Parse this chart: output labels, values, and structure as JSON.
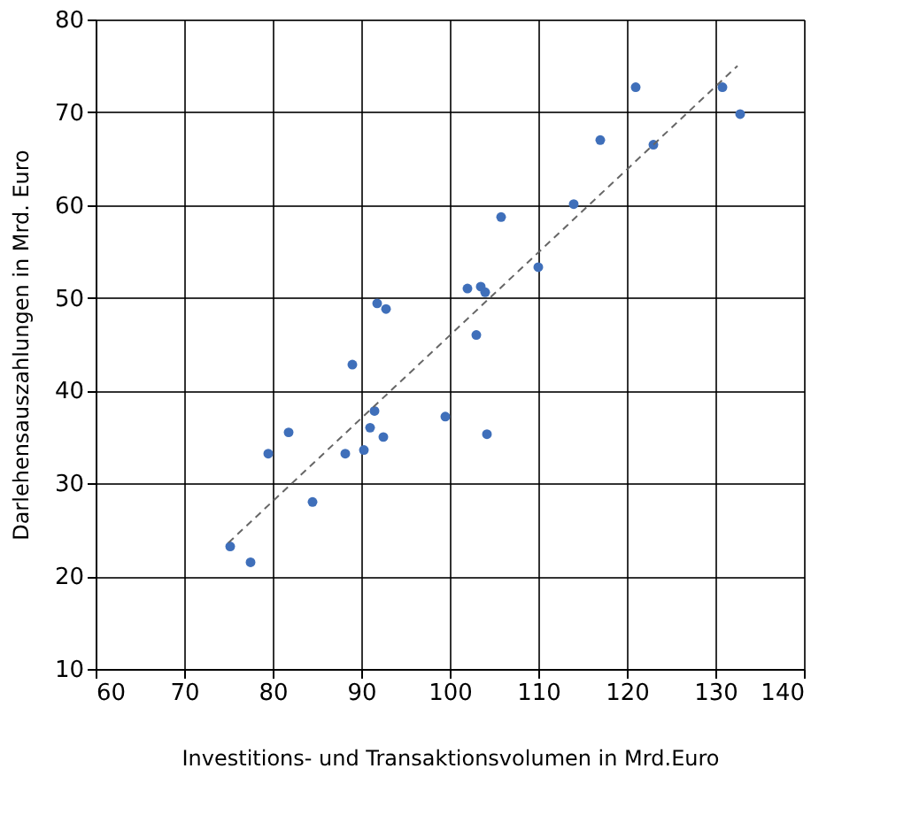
{
  "chart_data": {
    "type": "scatter",
    "xlabel": "Investitions- und Transaktionsvolumen in Mrd.Euro",
    "ylabel": "Darlehensauszahlungen in Mrd. Euro",
    "xlim": [
      60,
      140
    ],
    "xticks": [
      60,
      70,
      80,
      90,
      100,
      110,
      120,
      130,
      140
    ],
    "ylim": [
      10,
      80
    ],
    "yticks": [
      10,
      20,
      30,
      40,
      50,
      60,
      70,
      80
    ],
    "grid": true,
    "series": [
      {
        "color": "#3f6fba",
        "marker": "circle",
        "x": [
          75.2,
          77.5,
          79.5,
          81.8,
          84.5,
          88.2,
          89,
          90.3,
          91,
          91.5,
          91.8,
          92.5,
          92.8,
          99.5,
          102,
          103,
          103.5,
          104,
          104.2,
          105.8,
          110,
          114,
          117,
          121,
          123,
          130.8,
          132.8
        ],
        "values": [
          23.2,
          21.5,
          33.2,
          35.5,
          28,
          33.2,
          42.8,
          33.6,
          36,
          37.8,
          49.4,
          35,
          48.8,
          37.2,
          51,
          46,
          51.2,
          50.6,
          35.3,
          58.7,
          53.3,
          60.1,
          67,
          72.7,
          66.5,
          72.7,
          69.8
        ]
      },
      {
        "type": "line",
        "color": "#666666",
        "line_style": "dashed",
        "marker": "none",
        "x": [
          75,
          132.5
        ],
        "values": [
          23.6,
          75
        ]
      }
    ]
  }
}
